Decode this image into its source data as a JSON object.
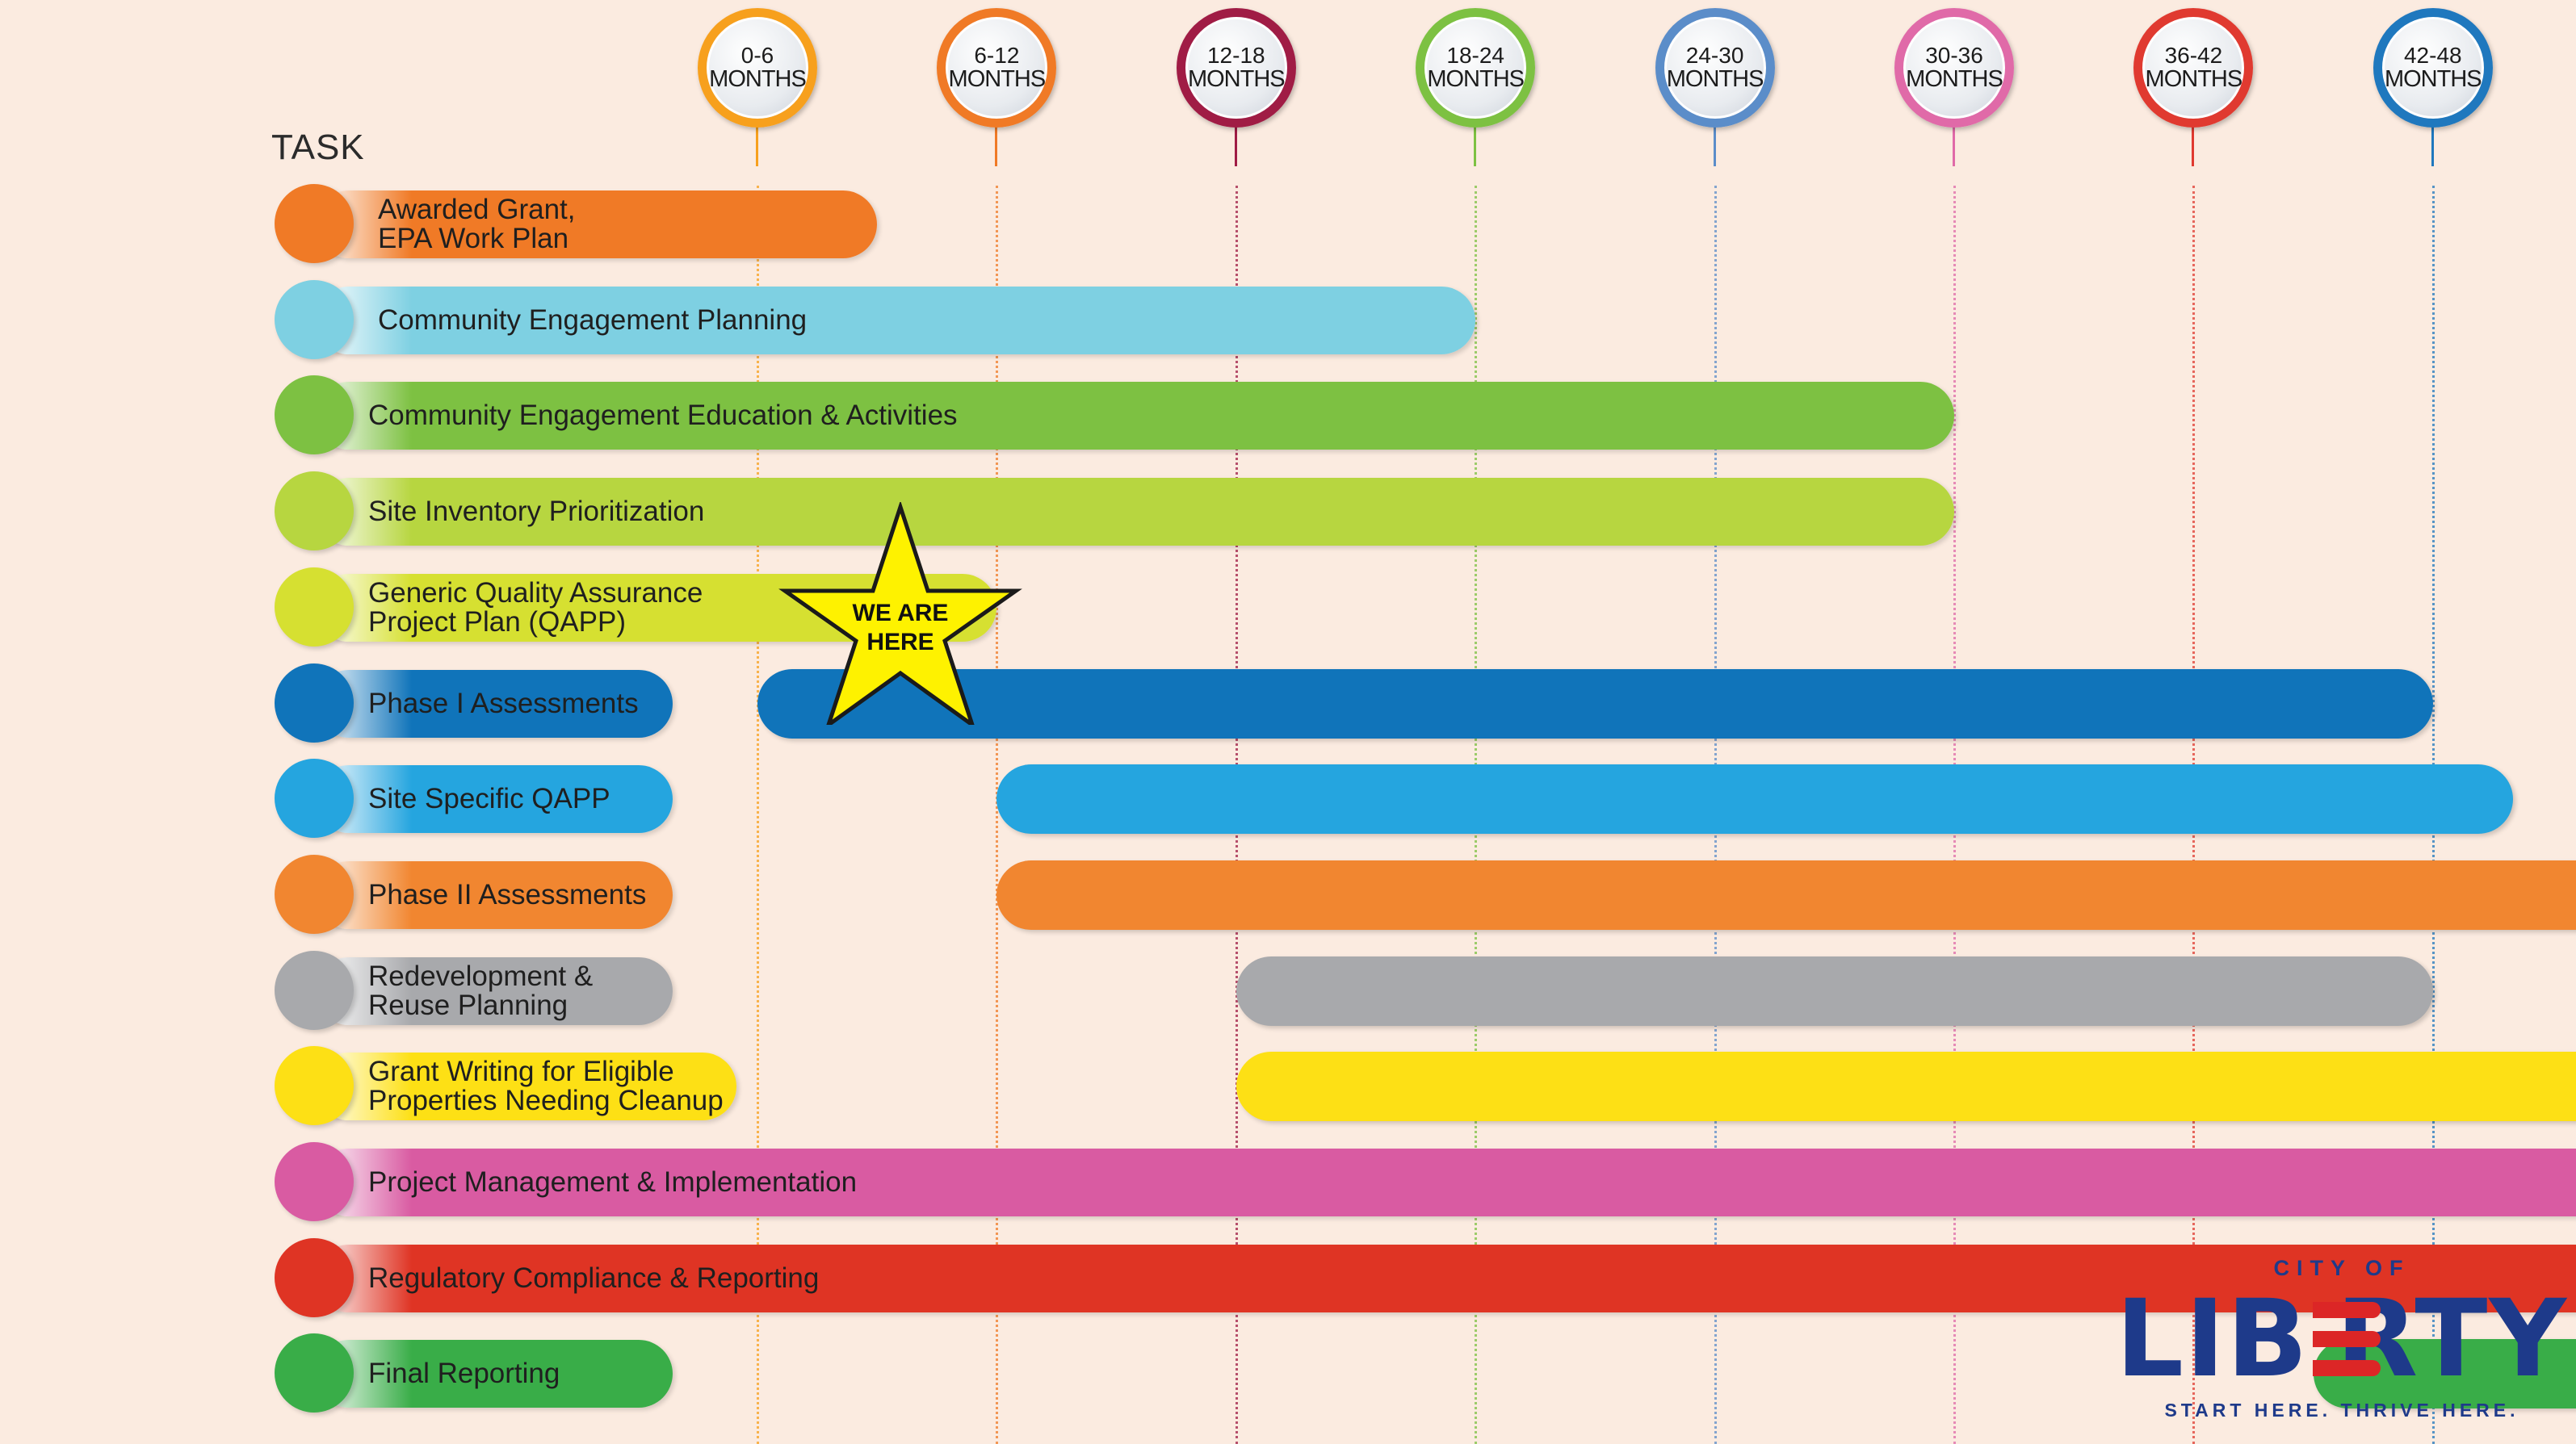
{
  "task_header": "TASK",
  "columns": [
    {
      "line1": "0-6",
      "line2": "MONTHS",
      "color": "#f7a01d"
    },
    {
      "line1": "6-12",
      "line2": "MONTHS",
      "color": "#f07a26"
    },
    {
      "line1": "12-18",
      "line2": "MONTHS",
      "color": "#a01c45"
    },
    {
      "line1": "18-24",
      "line2": "MONTHS",
      "color": "#7dc142"
    },
    {
      "line1": "24-30",
      "line2": "MONTHS",
      "color": "#5b8dc9"
    },
    {
      "line1": "30-36",
      "line2": "MONTHS",
      "color": "#e06aa8"
    },
    {
      "line1": "36-42",
      "line2": "MONTHS",
      "color": "#e03a30"
    },
    {
      "line1": "42-48",
      "line2": "MONTHS",
      "color": "#1f78be"
    }
  ],
  "tasks": [
    {
      "lines": [
        "Awarded Grant,",
        "EPA Work Plan"
      ],
      "color": "#f07a26",
      "start": 0,
      "end": 3
    },
    {
      "lines": [
        "Community Engagement Planning"
      ],
      "color": "#7ed0e2",
      "start": 0,
      "end": 18
    },
    {
      "lines": [
        "Community Engagement Education & Activities"
      ],
      "color": "#7dc142",
      "start": 0,
      "end": 30
    },
    {
      "lines": [
        "Site Inventory Prioritization"
      ],
      "color": "#b7d640",
      "start": 0,
      "end": 30
    },
    {
      "lines": [
        "Generic Quality Assurance",
        "Project Plan (QAPP)"
      ],
      "color": "#d6e031",
      "start": 0,
      "end": 6
    },
    {
      "lines": [
        "Phase I Assessments"
      ],
      "color": "#1074ba",
      "start": 0,
      "end": 42
    },
    {
      "lines": [
        "Site Specific QAPP"
      ],
      "color": "#25a5df",
      "start": 6,
      "end": 44
    },
    {
      "lines": [
        "Phase II Assessments"
      ],
      "color": "#f18630",
      "start": 6,
      "end": 47
    },
    {
      "lines": [
        "Redevelopment &",
        "Reuse Planning"
      ],
      "color": "#a8a9ac",
      "start": 12,
      "end": 42
    },
    {
      "lines": [
        "Grant Writing for Eligible",
        "Properties Needing Cleanup"
      ],
      "color": "#fde015",
      "start": 12,
      "end": 47
    },
    {
      "lines": [
        "Project Management & Implementation"
      ],
      "color": "#d95ba2",
      "start": 0,
      "end": 48
    },
    {
      "lines": [
        "Regulatory Compliance & Reporting"
      ],
      "color": "#df3424",
      "start": 0,
      "end": 48
    },
    {
      "lines": [
        "Final Reporting"
      ],
      "color": "#39ad48",
      "start": 39,
      "end": 48
    }
  ],
  "current_position": {
    "text_line1": "WE ARE",
    "text_line2": "HERE",
    "month": 6,
    "color": "#fef200"
  },
  "logo": {
    "top": "CITY OF",
    "left_part": "LIB",
    "right_part": "RTY",
    "tagline": "START HERE. THRIVE HERE.",
    "blue": "#1e3a8a",
    "red": "#dc2626"
  }
}
